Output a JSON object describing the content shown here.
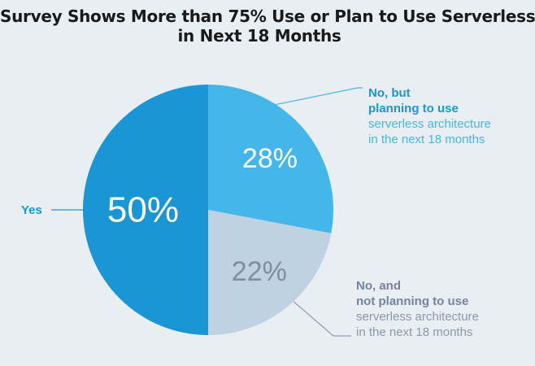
{
  "title": {
    "line1": "Survey Shows More than 75% Use or Plan to Use Serverless",
    "line2": "in Next 18 Months"
  },
  "labels": {
    "yes": "Yes",
    "planning": {
      "line1": "No, but",
      "line2": "planning to use",
      "line3": "serverless architecture",
      "line4": "in the next 18 months"
    },
    "not_planning": {
      "line1": "No, and",
      "line2": "not planning to use",
      "line3": "serverless architecture",
      "line4": "in the next 18 months"
    }
  },
  "colors": {
    "background": "#e9eef3",
    "yes": "#1a96d4",
    "planning": "#44b6ea",
    "not_planning": "#bfd2e2",
    "not_planning_text": "#7e8da3"
  },
  "chart_data": {
    "type": "pie",
    "categories": [
      "Yes",
      "No, but planning to use",
      "No, and not planning to use"
    ],
    "values": [
      50,
      28,
      22
    ],
    "value_labels": [
      "50%",
      "28%",
      "22%"
    ]
  }
}
